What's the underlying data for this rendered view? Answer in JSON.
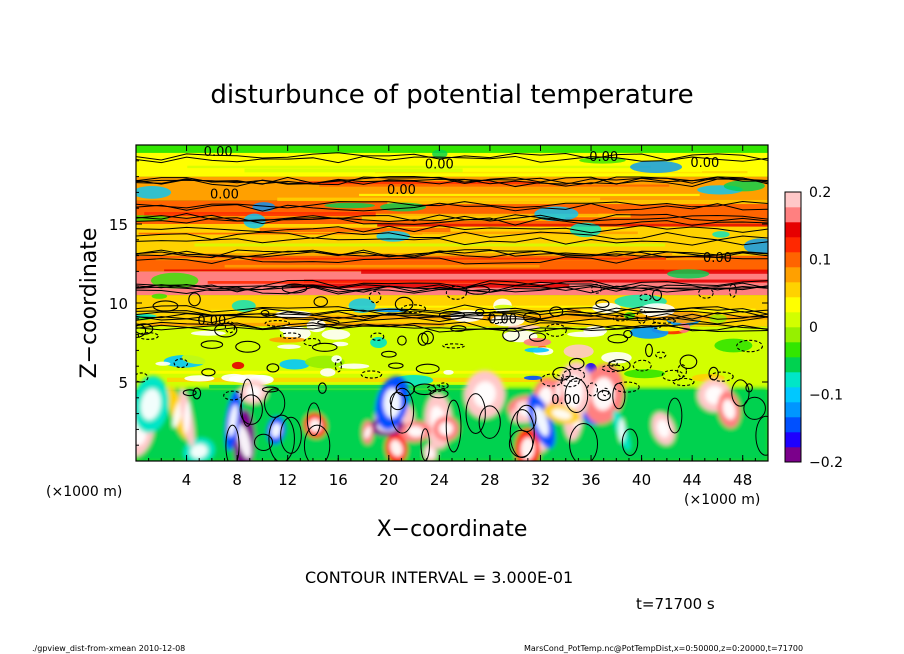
{
  "chart_data": {
    "type": "heatmap",
    "title": "disturbunce of potential temperature",
    "xlabel": "X−coordinate",
    "ylabel": "Z−coordinate",
    "x_unit_label": "(×1000 m)",
    "x_unit_label_right": "(×1000 m)",
    "xlim": [
      0,
      50
    ],
    "ylim": [
      0,
      20
    ],
    "x_ticks": [
      4,
      8,
      12,
      16,
      20,
      24,
      28,
      32,
      36,
      40,
      44,
      48
    ],
    "y_ticks": [
      5,
      10,
      15
    ],
    "colorbar": {
      "range": [
        -0.2,
        0.2
      ],
      "tick_labels": [
        "0.2",
        "0.1",
        "0",
        "−0.1",
        "−0.2"
      ],
      "tick_values": [
        0.2,
        0.1,
        0,
        -0.1,
        -0.2
      ],
      "colors": [
        "#7b008b",
        "#1e00ff",
        "#0050ff",
        "#0096ff",
        "#00c8ff",
        "#00e6c8",
        "#00d250",
        "#32e600",
        "#96f000",
        "#d2ff00",
        "#ffff00",
        "#ffd200",
        "#ffa000",
        "#ff6400",
        "#ff2800",
        "#e60000",
        "#ff8080",
        "#ffc8c8"
      ]
    },
    "contour_label": "0.00",
    "contour_interval_text": "CONTOUR INTERVAL = 3.000E-01",
    "time_text": "t=71700 s",
    "layers": [
      {
        "z": [
          0.3,
          4.5
        ],
        "desc": "convective cells"
      },
      {
        "z": [
          4.5,
          8.5
        ],
        "value": 0.0
      },
      {
        "z": [
          8.5,
          10.5
        ],
        "value": 0.05
      },
      {
        "z": [
          10.5,
          12.0
        ],
        "value": 0.17
      },
      {
        "z": [
          12.0,
          13.0
        ],
        "value": 0.1
      },
      {
        "z": [
          13.0,
          15.0
        ],
        "value": 0.06
      },
      {
        "z": [
          15.0,
          16.5
        ],
        "value": 0.09
      },
      {
        "z": [
          16.5,
          18.0
        ],
        "value": 0.07
      },
      {
        "z": [
          18.0,
          19.5
        ],
        "value": 0.04
      }
    ]
  },
  "footer": {
    "left": "./gpview_dist-from-xmean  2010-12-08",
    "right": "MarsCond_PotTemp.nc@PotTempDist,x=0:50000,z=0:20000,t=71700"
  }
}
